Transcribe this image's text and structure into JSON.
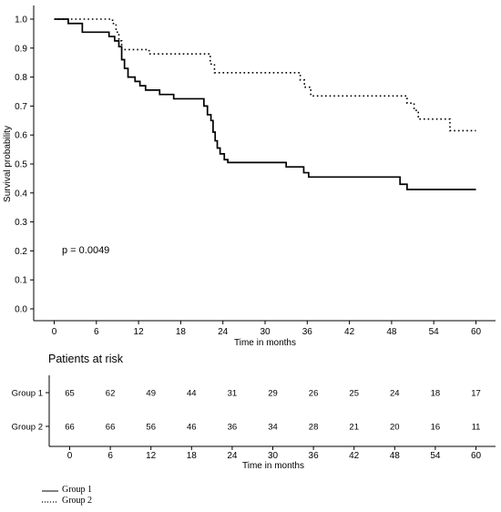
{
  "chart_data": [
    {
      "type": "line",
      "subtype": "kaplan-meier",
      "title": "",
      "xlabel": "Time in months",
      "ylabel": "Survival probability",
      "xlim": [
        0,
        60
      ],
      "ylim": [
        0,
        1
      ],
      "x_ticks": [
        "0",
        "6",
        "12",
        "18",
        "24",
        "30",
        "36",
        "42",
        "48",
        "54",
        "60"
      ],
      "y_ticks": [
        "0.0",
        "0.1",
        "0.2",
        "0.3",
        "0.4",
        "0.5",
        "0.6",
        "0.7",
        "0.8",
        "0.9",
        "1.0"
      ],
      "grid": false,
      "annotation": "p = 0.0049",
      "series": [
        {
          "name": "Group 1",
          "line_style": "solid",
          "steps": [
            [
              0,
              1.0
            ],
            [
              2,
              0.985
            ],
            [
              4,
              0.955
            ],
            [
              7.8,
              0.94
            ],
            [
              8.6,
              0.925
            ],
            [
              9.2,
              0.905
            ],
            [
              9.6,
              0.86
            ],
            [
              10,
              0.83
            ],
            [
              10.5,
              0.8
            ],
            [
              11.5,
              0.785
            ],
            [
              12.2,
              0.77
            ],
            [
              13,
              0.755
            ],
            [
              15,
              0.74
            ],
            [
              17,
              0.725
            ],
            [
              21.3,
              0.7
            ],
            [
              21.8,
              0.67
            ],
            [
              22.3,
              0.65
            ],
            [
              22.6,
              0.61
            ],
            [
              22.9,
              0.58
            ],
            [
              23.2,
              0.555
            ],
            [
              23.6,
              0.535
            ],
            [
              24.2,
              0.515
            ],
            [
              24.7,
              0.505
            ],
            [
              33,
              0.49
            ],
            [
              35.5,
              0.47
            ],
            [
              36.2,
              0.455
            ],
            [
              49.2,
              0.43
            ],
            [
              50.2,
              0.412
            ],
            [
              60,
              0.412
            ]
          ]
        },
        {
          "name": "Group 2",
          "line_style": "dotted",
          "steps": [
            [
              0,
              1.0
            ],
            [
              8.3,
              0.985
            ],
            [
              8.8,
              0.955
            ],
            [
              9.2,
              0.925
            ],
            [
              9.6,
              0.895
            ],
            [
              13.5,
              0.88
            ],
            [
              22.2,
              0.845
            ],
            [
              22.8,
              0.815
            ],
            [
              35,
              0.79
            ],
            [
              35.6,
              0.765
            ],
            [
              36.5,
              0.735
            ],
            [
              50.2,
              0.71
            ],
            [
              51.2,
              0.685
            ],
            [
              51.8,
              0.655
            ],
            [
              56.3,
              0.615
            ],
            [
              60,
              0.615
            ]
          ]
        }
      ]
    },
    {
      "type": "table",
      "title": "Patients at risk",
      "xlabel": "Time in months",
      "times": [
        "0",
        "6",
        "12",
        "18",
        "24",
        "30",
        "36",
        "42",
        "48",
        "54",
        "60"
      ],
      "rows": [
        {
          "label": "Group 1",
          "values": [
            "65",
            "62",
            "49",
            "44",
            "31",
            "29",
            "26",
            "25",
            "24",
            "18",
            "17"
          ]
        },
        {
          "label": "Group 2",
          "values": [
            "66",
            "66",
            "56",
            "46",
            "36",
            "34",
            "28",
            "21",
            "20",
            "16",
            "11"
          ]
        }
      ]
    }
  ],
  "legend": {
    "items": [
      {
        "label": "Group 1",
        "line_style": "solid"
      },
      {
        "label": "Group 2",
        "line_style": "dotted"
      }
    ]
  }
}
